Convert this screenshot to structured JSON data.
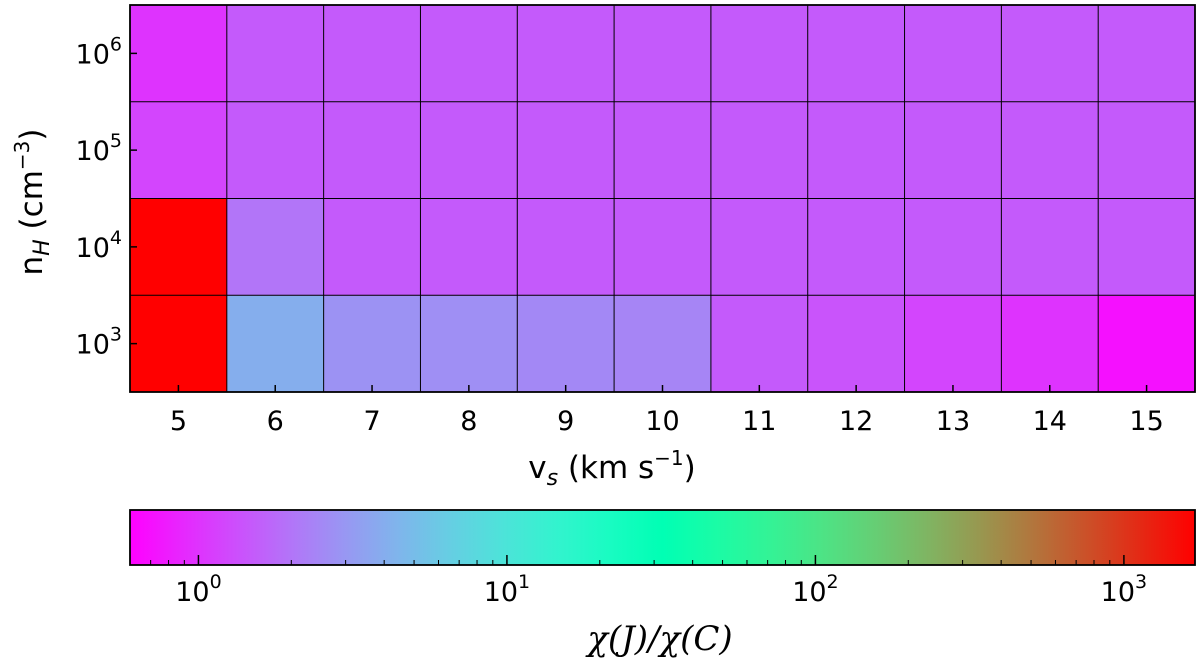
{
  "chart_data": [
    {
      "type": "heatmap",
      "x": [
        5,
        6,
        7,
        8,
        9,
        10,
        11,
        12,
        13,
        14,
        15
      ],
      "x_tick_labels": [
        "5",
        "6",
        "7",
        "8",
        "9",
        "10",
        "11",
        "12",
        "13",
        "14",
        "15"
      ],
      "xlabel": {
        "main": "v",
        "sub": "s",
        "units": " (km s",
        "sup": "−1",
        "close": ")"
      },
      "y": [
        1000,
        10000,
        100000,
        1000000
      ],
      "y_tick_labels": [
        {
          "base": "10",
          "exp": "3"
        },
        {
          "base": "10",
          "exp": "4"
        },
        {
          "base": "10",
          "exp": "5"
        },
        {
          "base": "10",
          "exp": "6"
        }
      ],
      "ylabel": {
        "main": "n",
        "sub": "H",
        "units": " (cm",
        "sup": "−3",
        "close": ")"
      },
      "yscale": "log",
      "values": [
        [
          1800,
          4.0,
          2.8,
          2.7,
          2.5,
          2.4,
          1.5,
          1.4,
          1.2,
          1.0,
          0.7
        ],
        [
          1800,
          2.0,
          1.5,
          1.5,
          1.5,
          1.5,
          1.5,
          1.5,
          1.5,
          1.5,
          1.5
        ],
        [
          1.2,
          1.5,
          1.5,
          1.5,
          1.5,
          1.5,
          1.5,
          1.5,
          1.5,
          1.5,
          1.5
        ],
        [
          1.0,
          1.5,
          1.5,
          1.5,
          1.5,
          1.5,
          1.5,
          1.5,
          1.5,
          1.5,
          1.5
        ]
      ],
      "colormap": "rainbow",
      "gridlines": true
    },
    {
      "type": "colorbar",
      "orientation": "horizontal",
      "scale": "log",
      "range": [
        0.6,
        1700
      ],
      "ticks": [
        1,
        10,
        100,
        1000
      ],
      "tick_labels": [
        {
          "base": "10",
          "exp": "0"
        },
        {
          "base": "10",
          "exp": "1"
        },
        {
          "base": "10",
          "exp": "2"
        },
        {
          "base": "10",
          "exp": "3"
        }
      ],
      "label": "χ(J)/χ(C)"
    }
  ]
}
